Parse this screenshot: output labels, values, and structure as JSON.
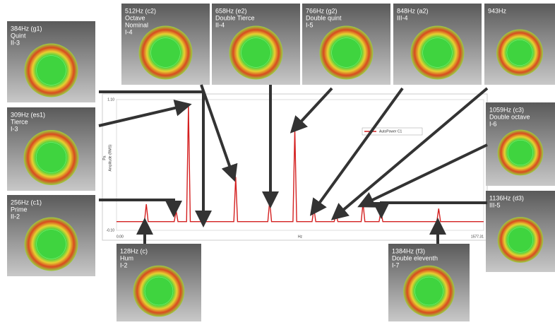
{
  "chart_data": {
    "type": "line",
    "x_label": "Hz",
    "y_label": "Pa",
    "y_label_2": "Amplitude (RMS)",
    "xlim": [
      0,
      1577.31
    ],
    "ylim": [
      -0.1,
      1.1
    ],
    "xticks": [
      {
        "value": 0,
        "label": "0.00"
      },
      {
        "value": 1577.31,
        "label": "1577.31"
      }
    ],
    "yticks": [
      {
        "value": -0.1,
        "label": "-0.10"
      },
      {
        "value": 1.1,
        "label": "1.10"
      }
    ],
    "grid": true,
    "series": [
      {
        "name": "AutoPower C1",
        "color": "#d42020",
        "x": [
          0,
          120,
          128,
          136,
          248,
          256,
          264,
          301,
          309,
          317,
          504,
          512,
          520,
          650,
          658,
          666,
          758,
          766,
          774,
          840,
          848,
          856,
          935,
          943,
          951,
          1051,
          1059,
          1067,
          1128,
          1136,
          1144,
          1376,
          1384,
          1392,
          1577
        ],
        "values": [
          -0.02,
          -0.02,
          0.14,
          -0.02,
          -0.02,
          0.08,
          -0.02,
          -0.02,
          1.05,
          -0.02,
          -0.02,
          0.39,
          -0.02,
          -0.02,
          0.17,
          -0.02,
          -0.02,
          0.83,
          -0.02,
          -0.02,
          0.1,
          -0.02,
          -0.02,
          0.05,
          -0.02,
          -0.02,
          0.15,
          -0.02,
          -0.02,
          0.08,
          -0.02,
          -0.02,
          0.1,
          -0.02,
          -0.02
        ]
      }
    ]
  },
  "panels": [
    {
      "lines": [
        "384Hz (g1)",
        "Quint",
        "II-3"
      ]
    },
    {
      "lines": [
        "309Hz (es1)",
        "Tierce",
        "I-3"
      ]
    },
    {
      "lines": [
        "256Hz (c1)",
        "Prime",
        "II-2"
      ]
    },
    {
      "lines": [
        "128Hz (c)",
        "Hum",
        "I-2"
      ]
    },
    {
      "lines": [
        "512Hz (c2)",
        "Octave",
        "Nominal",
        "I-4"
      ]
    },
    {
      "lines": [
        "658Hz (e2)",
        "Double Tierce",
        "II-4"
      ]
    },
    {
      "lines": [
        "766Hz (g2)",
        "Double quint",
        "I-5"
      ]
    },
    {
      "lines": [
        "848Hz (a2)",
        "III-4"
      ]
    },
    {
      "lines": [
        "943Hz"
      ]
    },
    {
      "lines": [
        "1059Hz (c3)",
        "Double octave",
        "I-6"
      ]
    },
    {
      "lines": [
        "1136Hz (d3)",
        "III-5"
      ]
    },
    {
      "lines": [
        "1384Hz (f3)",
        "Double eleventh",
        "I-7"
      ]
    }
  ]
}
